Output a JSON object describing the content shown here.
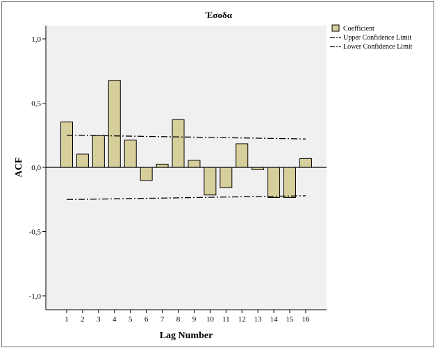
{
  "chart_data": {
    "type": "bar",
    "title": "Έσοδα",
    "xlabel": "Lag Number",
    "ylabel": "ACF",
    "categories": [
      "1",
      "2",
      "3",
      "4",
      "5",
      "6",
      "7",
      "8",
      "9",
      "10",
      "11",
      "12",
      "13",
      "14",
      "15",
      "16"
    ],
    "values": [
      0.353,
      0.103,
      0.247,
      0.677,
      0.212,
      -0.102,
      0.025,
      0.372,
      0.055,
      -0.215,
      -0.158,
      0.184,
      -0.018,
      -0.235,
      -0.235,
      0.068
    ],
    "upper_confidence_limit": [
      0.25,
      0.249,
      0.247,
      0.245,
      0.243,
      0.241,
      0.239,
      0.237,
      0.235,
      0.233,
      0.231,
      0.229,
      0.227,
      0.225,
      0.223,
      0.221
    ],
    "lower_confidence_limit": [
      -0.25,
      -0.249,
      -0.247,
      -0.245,
      -0.243,
      -0.241,
      -0.239,
      -0.237,
      -0.235,
      -0.233,
      -0.231,
      -0.229,
      -0.227,
      -0.225,
      -0.223,
      -0.221
    ],
    "ylim": [
      -1.0,
      1.0
    ],
    "yticks": [
      1.0,
      0.5,
      0.0,
      -0.5,
      -1.0
    ],
    "ytick_labels": [
      "1,0",
      "0,5",
      "0,0",
      "-0,5",
      "-1,0"
    ],
    "legend": {
      "position": "top-right",
      "entries": [
        "Coefficient",
        "Upper Confidence Limit",
        "Lower Confidence Limit"
      ]
    },
    "grid": false,
    "colors": {
      "bar_fill": "#d7cf9b",
      "bar_stroke": "#000000",
      "plot_background": "#f0f0f0",
      "confidence_line": "#000000"
    }
  }
}
